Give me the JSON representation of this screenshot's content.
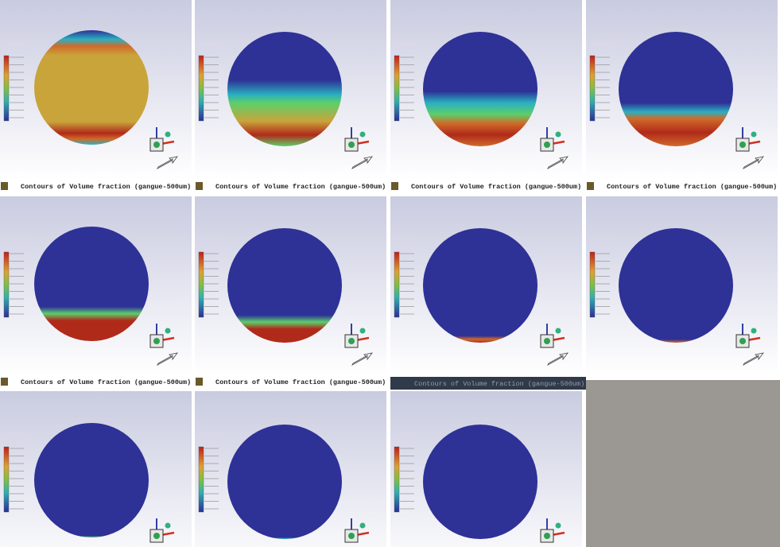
{
  "captions": [
    "Contours of Volume fraction (gangue-500um)",
    "Contours of Volume fraction (gangue-500um)",
    "Contours of Volume fraction (gangue-500um)",
    "Contours of Volume fraction (gangue-500um)",
    "Contours of Volume fraction (gangue-500um)",
    "Contours of Volume fraction (gangue-500um)",
    "Contours of Volume fraction (gangue-500um)"
  ]
}
